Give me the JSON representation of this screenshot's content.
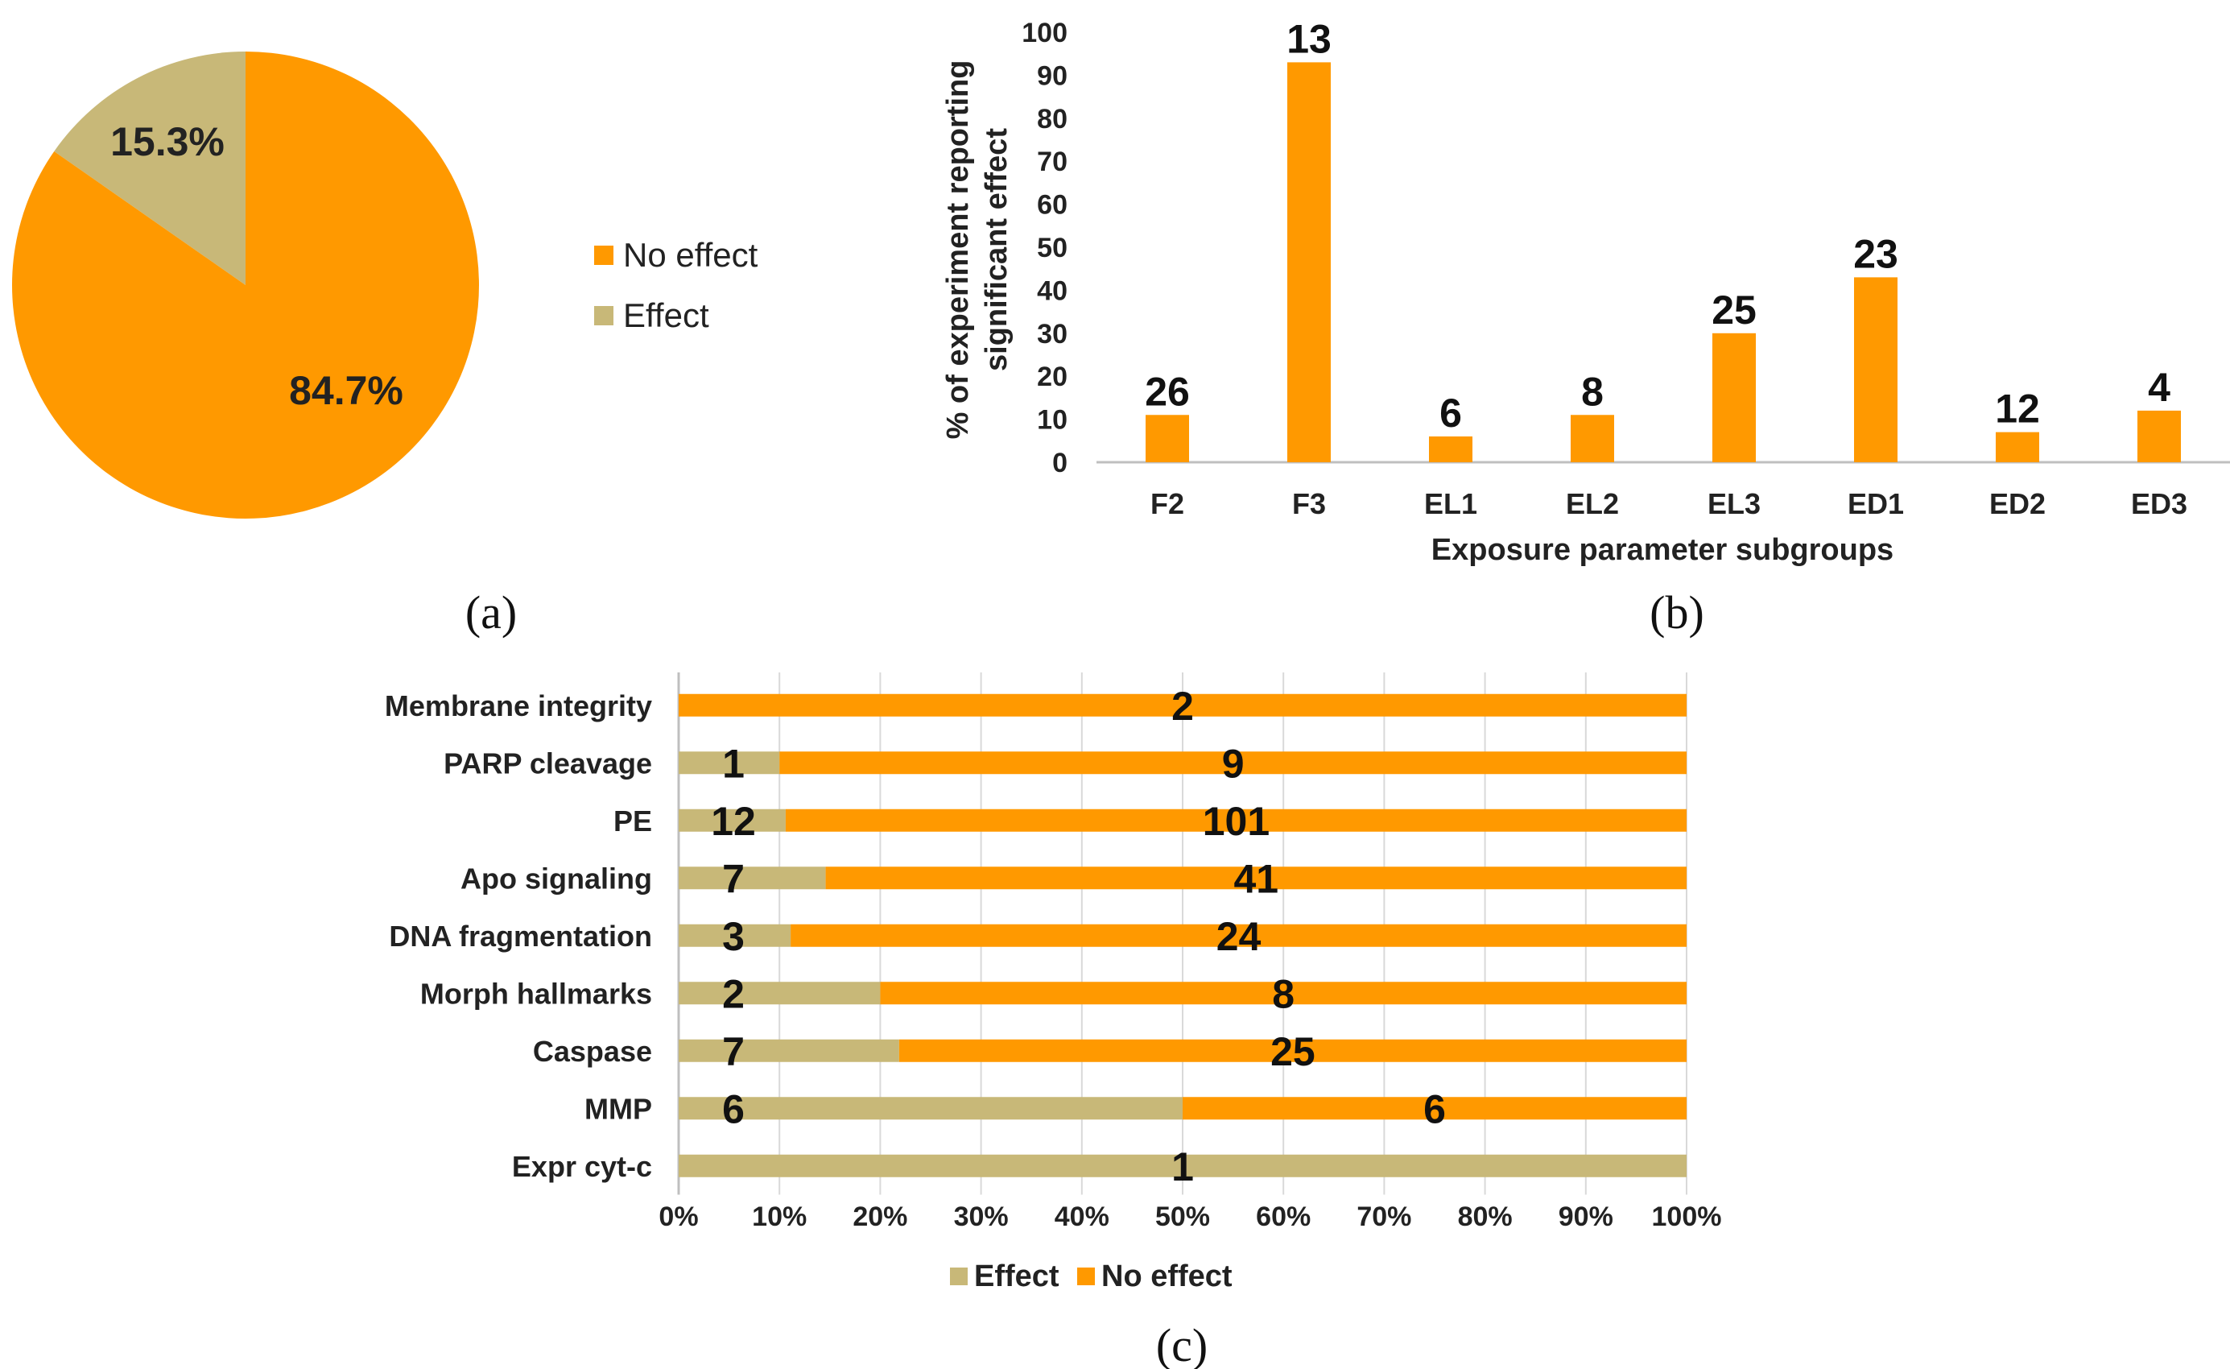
{
  "colors": {
    "no_effect": "#FF9900",
    "effect": "#C8B878",
    "axis": "#BFBFBF",
    "grid": "#D9D9D9"
  },
  "chart_data": [
    {
      "panel": "(a)",
      "type": "pie",
      "slices": [
        {
          "name": "Effect",
          "value": 15.3,
          "label": "15.3%"
        },
        {
          "name": "No effect",
          "value": 84.7,
          "label": "84.7%"
        }
      ],
      "legend": [
        "No effect",
        "Effect"
      ],
      "legend_position": "right"
    },
    {
      "panel": "(b)",
      "type": "bar",
      "categories": [
        "F2",
        "F3",
        "EL1",
        "EL2",
        "EL3",
        "ED1",
        "ED2",
        "ED3"
      ],
      "values": [
        11,
        93,
        6,
        11,
        30,
        43,
        7,
        12
      ],
      "data_labels": [
        "26",
        "13",
        "6",
        "8",
        "25",
        "23",
        "12",
        "4"
      ],
      "xlabel": "Exposure parameter subgroups",
      "ylabel_lines": [
        "% of experiment reporting",
        "significant effect"
      ],
      "ylim": [
        0,
        100
      ],
      "yticks": [
        "0",
        "10",
        "20",
        "30",
        "40",
        "50",
        "60",
        "70",
        "80",
        "90",
        "100"
      ],
      "grid": false
    },
    {
      "panel": "(c)",
      "type": "bar",
      "orientation": "horizontal",
      "stacked": "percent",
      "categories": [
        "Membrane integrity",
        "PARP cleavage",
        "PE",
        "Apo signaling",
        "DNA fragmentation",
        "Morph hallmarks",
        "Caspase",
        "MMP",
        "Expr cyt-c"
      ],
      "series": [
        {
          "name": "Effect",
          "values": [
            0,
            1,
            12,
            7,
            3,
            2,
            7,
            6,
            1
          ]
        },
        {
          "name": "No effect",
          "values": [
            2,
            9,
            101,
            41,
            24,
            8,
            25,
            6,
            0
          ]
        }
      ],
      "xticks": [
        "0%",
        "10%",
        "20%",
        "30%",
        "40%",
        "50%",
        "60%",
        "70%",
        "80%",
        "90%",
        "100%"
      ],
      "xlim": [
        0,
        100
      ],
      "grid": true,
      "legend": [
        "Effect",
        "No effect"
      ],
      "legend_position": "bottom"
    }
  ]
}
